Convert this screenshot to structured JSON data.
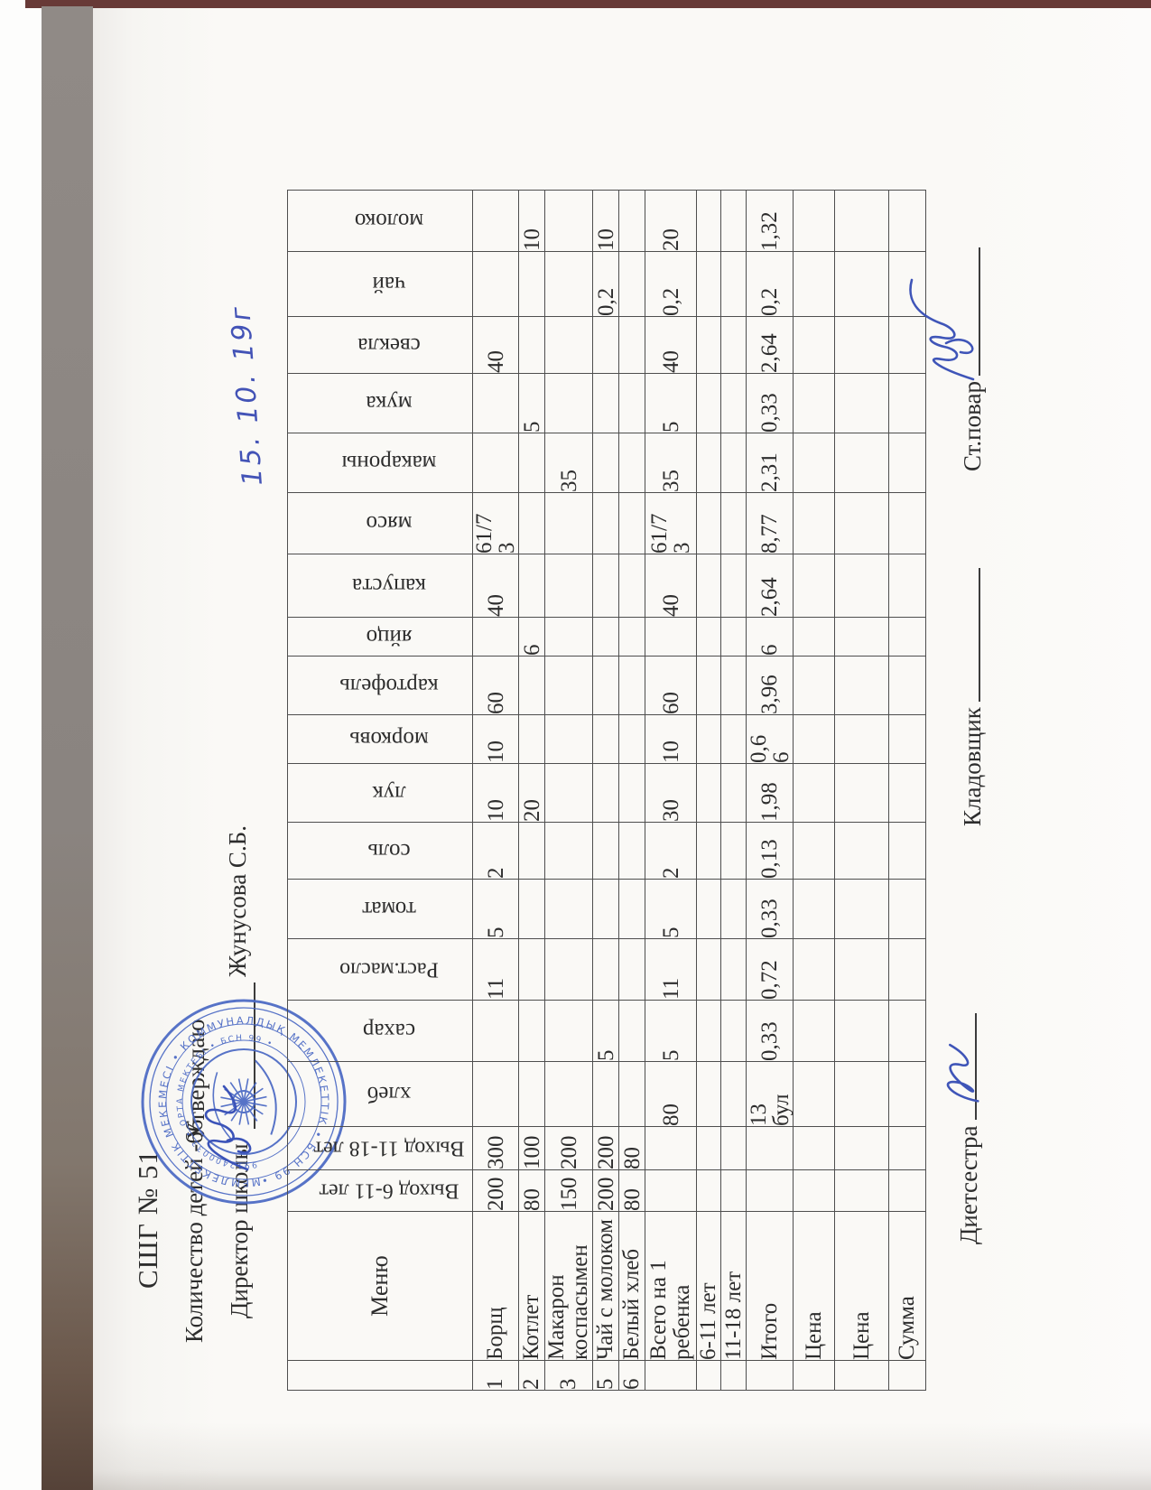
{
  "header": {
    "school": "СШГ № 51",
    "children": "Количество детей -66",
    "approve": "Утверждаю",
    "director_label": "Директор школы",
    "director_name": "Жунусова С.Б.",
    "date_handwritten": "15. 10. 19г"
  },
  "stamp": {
    "color": "#4a68c4",
    "ring_text": "МЕМЛЕКЕТТІК МЕКЕМЕСІ • КОММУНАЛДЫҚ МЕМЛЕКЕТТІК • БСН 99 •",
    "inner_ring_text": "9912400033 • ОРТА МЕКТЕБІ • БСН 99 •"
  },
  "table": {
    "columns": [
      {
        "key": "num",
        "label": "",
        "vertical": false
      },
      {
        "key": "menu",
        "label": "Меню",
        "vertical": false
      },
      {
        "key": "out-6-11",
        "label": "Выход 6-11 лет",
        "vertical": true
      },
      {
        "key": "out-11-18",
        "label": "Выход 11-18 лет",
        "vertical": true
      },
      {
        "key": "bread",
        "label": "хлеб",
        "vertical": true
      },
      {
        "key": "sugar",
        "label": "сахар",
        "vertical": true
      },
      {
        "key": "veg-oil",
        "label": "Раст.масло",
        "vertical": true
      },
      {
        "key": "tomato",
        "label": "томат",
        "vertical": true
      },
      {
        "key": "salt",
        "label": "соль",
        "vertical": true
      },
      {
        "key": "onion",
        "label": "лук",
        "vertical": true
      },
      {
        "key": "carrot",
        "label": "морковь",
        "vertical": true
      },
      {
        "key": "potato",
        "label": "картофель",
        "vertical": true
      },
      {
        "key": "egg",
        "label": "яйцо",
        "vertical": true
      },
      {
        "key": "cabbage",
        "label": "капуста",
        "vertical": true
      },
      {
        "key": "meat",
        "label": "мясо",
        "vertical": true
      },
      {
        "key": "pasta",
        "label": "макароны",
        "vertical": true
      },
      {
        "key": "flour",
        "label": "мука",
        "vertical": true
      },
      {
        "key": "beet",
        "label": "свекла",
        "vertical": true
      },
      {
        "key": "tea",
        "label": "чай",
        "vertical": true
      },
      {
        "key": "milk",
        "label": "молоко",
        "vertical": true
      }
    ],
    "rows": [
      [
        "1",
        "Борщ",
        "200",
        "300",
        "",
        "",
        "11",
        "5",
        "2",
        "10",
        "10",
        "60",
        "",
        "40",
        "61/7\n3",
        "",
        "",
        "40",
        "",
        ""
      ],
      [
        "2",
        "Котлет",
        "80",
        "100",
        "",
        "",
        "",
        "",
        "",
        "20",
        "",
        "",
        "6",
        "",
        "",
        "",
        "5",
        "",
        "",
        "10"
      ],
      [
        "3",
        "Макарон коспасымен",
        "150",
        "200",
        "",
        "",
        "",
        "",
        "",
        "",
        "",
        "",
        "",
        "",
        "",
        "35",
        "",
        "",
        "",
        ""
      ],
      [
        "5",
        "Чай с молоком",
        "200",
        "200",
        "",
        "5",
        "",
        "",
        "",
        "",
        "",
        "",
        "",
        "",
        "",
        "",
        "",
        "",
        "0,2",
        "10"
      ],
      [
        "6",
        "Белый хлеб",
        "80",
        "80",
        "",
        "",
        "",
        "",
        "",
        "",
        "",
        "",
        "",
        "",
        "",
        "",
        "",
        "",
        "",
        ""
      ],
      [
        "",
        "Всего на 1 ребенка",
        "",
        "",
        "80",
        "5",
        "11",
        "5",
        "2",
        "30",
        "10",
        "60",
        "",
        "40",
        "61/7\n3",
        "35",
        "5",
        "40",
        "0,2",
        "20"
      ],
      [
        "",
        "6-11 лет",
        "",
        "",
        "",
        "",
        "",
        "",
        "",
        "",
        "",
        "",
        "",
        "",
        "",
        "",
        "",
        "",
        "",
        ""
      ],
      [
        "",
        "11-18 лет",
        "",
        "",
        "",
        "",
        "",
        "",
        "",
        "",
        "",
        "",
        "",
        "",
        "",
        "",
        "",
        "",
        "",
        ""
      ],
      [
        "",
        "Итого",
        "",
        "",
        "13\nбул",
        "0,33",
        "0,72",
        "0,33",
        "0,13",
        "1,98",
        "0,6\n6",
        "3,96",
        "6",
        "2,64",
        "8,77",
        "2,31",
        "0,33",
        "2,64",
        "0,2",
        "1,32"
      ],
      [
        "",
        "Цена",
        "",
        "",
        "",
        "",
        "",
        "",
        "",
        "",
        "",
        "",
        "",
        "",
        "",
        "",
        "",
        "",
        "",
        ""
      ],
      [
        "",
        "Цена",
        "",
        "",
        "",
        "",
        "",
        "",
        "",
        "",
        "",
        "",
        "",
        "",
        "",
        "",
        "",
        "",
        "",
        ""
      ],
      [
        "",
        "Сумма",
        "",
        "",
        "",
        "",
        "",
        "",
        "",
        "",
        "",
        "",
        "",
        "",
        "",
        "",
        "",
        "",
        "",
        ""
      ]
    ]
  },
  "footer": {
    "diet_sister": "Диетсестра",
    "storekeeper": "Кладовщик",
    "head_cook": "Ст.повар"
  }
}
